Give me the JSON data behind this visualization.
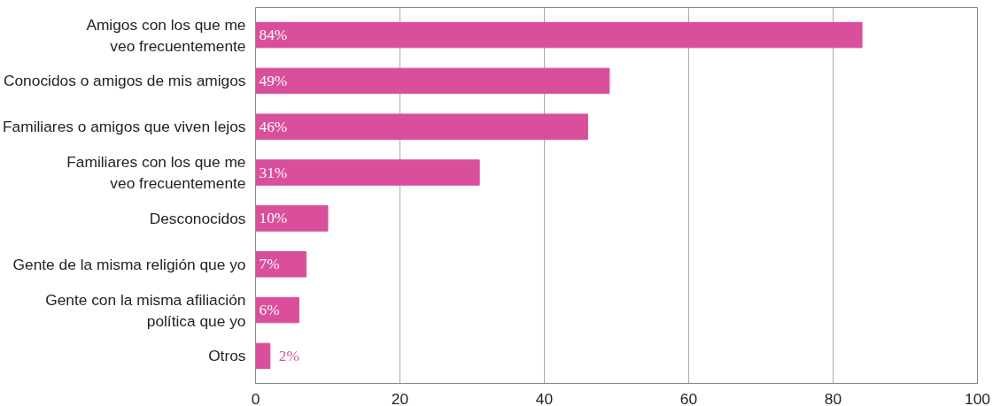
{
  "chart_data": {
    "type": "bar",
    "orientation": "horizontal",
    "categories": [
      "Amigos con los que me\nveo frecuentemente",
      "Conocidos o amigos de mis amigos",
      "Familiares o amigos que viven lejos",
      "Familiares con los que me\nveo frecuentemente",
      "Desconocidos",
      "Gente de la misma religión que yo",
      "Gente con la misma afiliación\npolítica que yo",
      "Otros"
    ],
    "values": [
      84,
      49,
      46,
      31,
      10,
      7,
      6,
      2
    ],
    "value_labels": [
      "84%",
      "49%",
      "46%",
      "31%",
      "10%",
      "7%",
      "6%",
      "2%"
    ],
    "color": "#d94f9b",
    "xlim": [
      0,
      100
    ],
    "xticks": [
      0,
      20,
      40,
      60,
      80,
      100
    ],
    "grid": "x"
  }
}
